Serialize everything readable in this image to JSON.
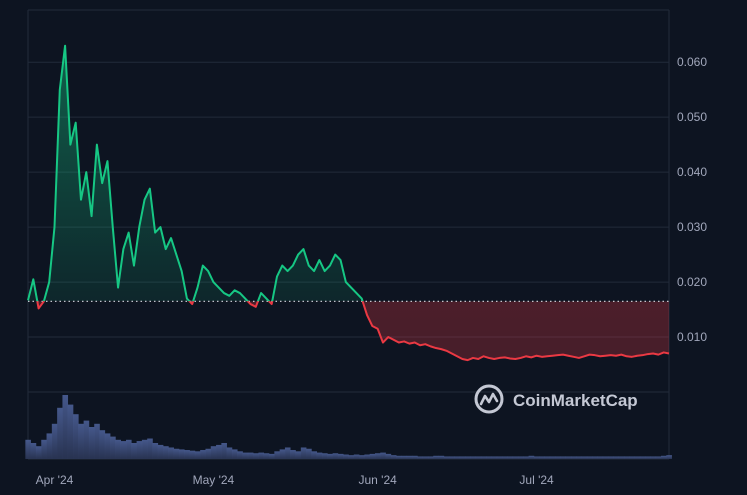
{
  "chart_data": {
    "type": "area",
    "title": "",
    "xlabel": "",
    "ylabel": "",
    "x_ticks": [
      "Apr '24",
      "May '24",
      "Jun '24",
      "Jul '24"
    ],
    "y_ticks": [
      "0.010",
      "0.020",
      "0.030",
      "0.040",
      "0.050",
      "0.060"
    ],
    "ylim": [
      0,
      0.0695
    ],
    "baseline": 0.0165,
    "grid": true,
    "colors": {
      "up": "#16c784",
      "down": "#ea3943",
      "volume": "#3a4a7a",
      "grid": "#222b3b"
    },
    "dates": [
      "2024-03-27",
      "2024-03-28",
      "2024-03-29",
      "2024-03-30",
      "2024-03-31",
      "2024-04-01",
      "2024-04-02",
      "2024-04-03",
      "2024-04-04",
      "2024-04-05",
      "2024-04-06",
      "2024-04-07",
      "2024-04-08",
      "2024-04-09",
      "2024-04-10",
      "2024-04-11",
      "2024-04-12",
      "2024-04-13",
      "2024-04-14",
      "2024-04-15",
      "2024-04-16",
      "2024-04-17",
      "2024-04-18",
      "2024-04-19",
      "2024-04-20",
      "2024-04-21",
      "2024-04-22",
      "2024-04-23",
      "2024-04-24",
      "2024-04-25",
      "2024-04-26",
      "2024-04-27",
      "2024-04-28",
      "2024-04-29",
      "2024-04-30",
      "2024-05-01",
      "2024-05-02",
      "2024-05-03",
      "2024-05-04",
      "2024-05-05",
      "2024-05-06",
      "2024-05-07",
      "2024-05-08",
      "2024-05-09",
      "2024-05-10",
      "2024-05-11",
      "2024-05-12",
      "2024-05-13",
      "2024-05-14",
      "2024-05-15",
      "2024-05-16",
      "2024-05-17",
      "2024-05-18",
      "2024-05-19",
      "2024-05-20",
      "2024-05-21",
      "2024-05-22",
      "2024-05-23",
      "2024-05-24",
      "2024-05-25",
      "2024-05-26",
      "2024-05-27",
      "2024-05-28",
      "2024-05-29",
      "2024-05-30",
      "2024-05-31",
      "2024-06-01",
      "2024-06-02",
      "2024-06-03",
      "2024-06-04",
      "2024-06-05",
      "2024-06-06",
      "2024-06-07",
      "2024-06-08",
      "2024-06-09",
      "2024-06-10",
      "2024-06-11",
      "2024-06-12",
      "2024-06-13",
      "2024-06-14",
      "2024-06-15",
      "2024-06-16",
      "2024-06-17",
      "2024-06-18",
      "2024-06-19",
      "2024-06-20",
      "2024-06-21",
      "2024-06-22",
      "2024-06-23",
      "2024-06-24",
      "2024-06-25",
      "2024-06-26",
      "2024-06-27",
      "2024-06-28",
      "2024-06-29",
      "2024-06-30",
      "2024-07-01",
      "2024-07-02",
      "2024-07-03",
      "2024-07-04",
      "2024-07-05",
      "2024-07-06",
      "2024-07-07",
      "2024-07-08",
      "2024-07-09",
      "2024-07-10",
      "2024-07-11",
      "2024-07-12",
      "2024-07-13",
      "2024-07-14",
      "2024-07-15",
      "2024-07-16",
      "2024-07-17",
      "2024-07-18",
      "2024-07-19",
      "2024-07-20",
      "2024-07-21",
      "2024-07-22",
      "2024-07-23",
      "2024-07-24",
      "2024-07-25",
      "2024-07-26"
    ],
    "price": [
      0.0167,
      0.0205,
      0.0152,
      0.0165,
      0.02,
      0.03,
      0.055,
      0.063,
      0.045,
      0.049,
      0.035,
      0.04,
      0.032,
      0.045,
      0.038,
      0.042,
      0.03,
      0.019,
      0.026,
      0.029,
      0.023,
      0.03,
      0.035,
      0.037,
      0.029,
      0.03,
      0.026,
      0.028,
      0.025,
      0.022,
      0.017,
      0.016,
      0.019,
      0.023,
      0.022,
      0.02,
      0.019,
      0.018,
      0.0175,
      0.0185,
      0.018,
      0.017,
      0.016,
      0.0155,
      0.018,
      0.017,
      0.016,
      0.021,
      0.023,
      0.022,
      0.023,
      0.025,
      0.026,
      0.023,
      0.022,
      0.024,
      0.022,
      0.023,
      0.025,
      0.024,
      0.02,
      0.019,
      0.018,
      0.017,
      0.014,
      0.012,
      0.0115,
      0.009,
      0.01,
      0.0095,
      0.009,
      0.0092,
      0.0088,
      0.009,
      0.0085,
      0.0087,
      0.0083,
      0.008,
      0.0078,
      0.0075,
      0.007,
      0.0065,
      0.006,
      0.0058,
      0.0062,
      0.006,
      0.0065,
      0.0062,
      0.006,
      0.0062,
      0.0063,
      0.0061,
      0.006,
      0.0062,
      0.0065,
      0.0063,
      0.0066,
      0.0064,
      0.0065,
      0.0066,
      0.0067,
      0.0068,
      0.0066,
      0.0064,
      0.0062,
      0.0065,
      0.0068,
      0.0067,
      0.0065,
      0.0066,
      0.0067,
      0.0066,
      0.0068,
      0.0065,
      0.0064,
      0.0066,
      0.0067,
      0.0069,
      0.007,
      0.0068,
      0.0072,
      0.007
    ],
    "volume": [
      0.3,
      0.25,
      0.2,
      0.3,
      0.4,
      0.55,
      0.8,
      1.0,
      0.85,
      0.7,
      0.55,
      0.6,
      0.5,
      0.55,
      0.45,
      0.4,
      0.35,
      0.3,
      0.28,
      0.3,
      0.25,
      0.28,
      0.3,
      0.32,
      0.25,
      0.22,
      0.2,
      0.18,
      0.16,
      0.15,
      0.14,
      0.13,
      0.12,
      0.14,
      0.16,
      0.2,
      0.22,
      0.25,
      0.18,
      0.15,
      0.12,
      0.1,
      0.1,
      0.09,
      0.1,
      0.09,
      0.08,
      0.12,
      0.15,
      0.18,
      0.14,
      0.12,
      0.18,
      0.16,
      0.12,
      0.1,
      0.09,
      0.08,
      0.09,
      0.08,
      0.07,
      0.06,
      0.07,
      0.06,
      0.07,
      0.08,
      0.09,
      0.1,
      0.08,
      0.06,
      0.05,
      0.05,
      0.05,
      0.05,
      0.04,
      0.04,
      0.04,
      0.05,
      0.05,
      0.04,
      0.04,
      0.04,
      0.04,
      0.04,
      0.04,
      0.04,
      0.04,
      0.04,
      0.04,
      0.04,
      0.04,
      0.04,
      0.04,
      0.04,
      0.04,
      0.05,
      0.04,
      0.04,
      0.04,
      0.04,
      0.04,
      0.04,
      0.04,
      0.04,
      0.04,
      0.04,
      0.04,
      0.04,
      0.04,
      0.04,
      0.04,
      0.04,
      0.04,
      0.04,
      0.04,
      0.04,
      0.04,
      0.04,
      0.04,
      0.04,
      0.05,
      0.06
    ]
  },
  "watermark": {
    "text": "CoinMarketCap",
    "icon": "coinmarketcap-logo-icon"
  }
}
